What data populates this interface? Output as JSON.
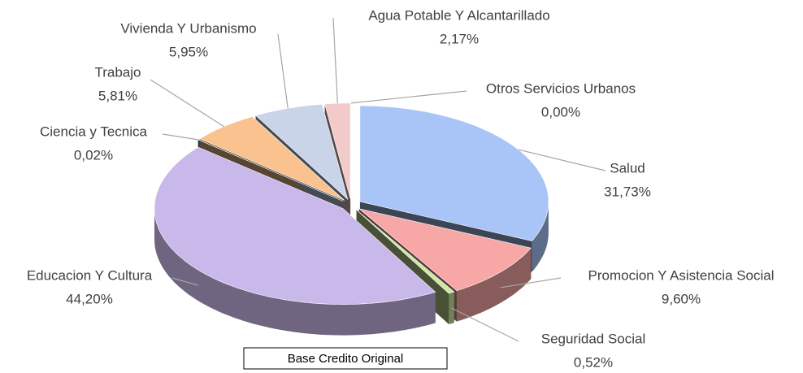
{
  "chart_data": {
    "type": "pie",
    "categories": [
      "Salud",
      "Promocion Y Asistencia Social",
      "Seguridad Social",
      "Educacion Y Cultura",
      "Ciencia y Tecnica",
      "Trabajo",
      "Vivienda Y Urbanismo",
      "Agua Potable Y Alcantarillado",
      "Otros Servicios Urbanos"
    ],
    "values": [
      31.73,
      9.6,
      0.52,
      44.2,
      0.02,
      5.81,
      5.95,
      2.17,
      0.0
    ],
    "value_labels": [
      "31,73%",
      "9,60%",
      "0,52%",
      "44,20%",
      "0,02%",
      "5,81%",
      "5,95%",
      "2,17%",
      "0,00%"
    ],
    "colors": [
      "#a9c5f7",
      "#f7a8a6",
      "#cfe8a0",
      "#c9b8ea",
      "#4aa3b3",
      "#f9c28e",
      "#c9d4e8",
      "#f2caca",
      "#dddddd"
    ],
    "caption": "Base  Credito  Original"
  }
}
